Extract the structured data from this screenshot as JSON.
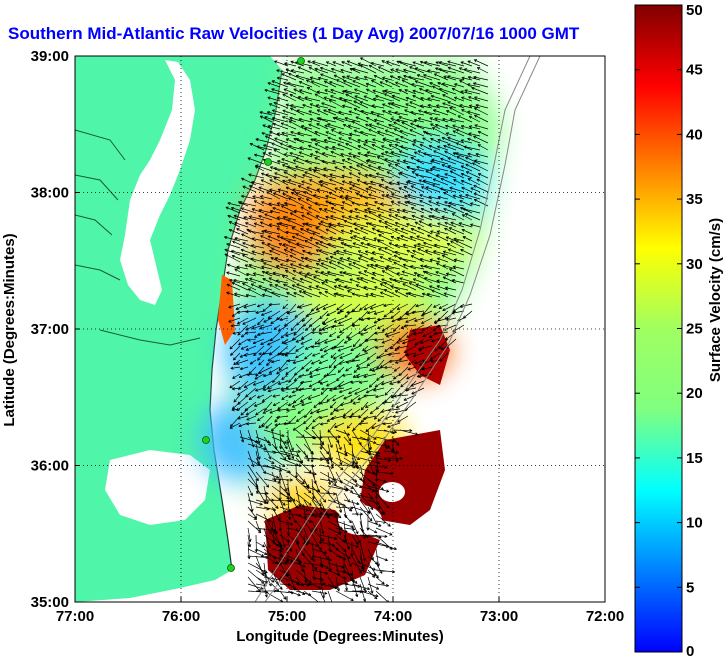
{
  "title": "Southern Mid-Atlantic Raw Velocities (1 Day Avg) 2007/07/16 1000 GMT",
  "map": {
    "xlabel": "Longitude (Degrees:Minutes)",
    "ylabel": "Latitude (Degrees:Minutes)",
    "lon_range": [
      -77,
      -72
    ],
    "lat_range": [
      35,
      39
    ],
    "x_ticks": [
      "77:00",
      "76:00",
      "75:00",
      "74:00",
      "73:00",
      "72:00"
    ],
    "y_ticks": [
      "39:00",
      "38:00",
      "37:00",
      "36:00",
      "35:00"
    ],
    "grid": "dotted",
    "land_color": "#4ff5a8",
    "water_color": "#ffffff"
  },
  "colorbar": {
    "label": "Surface Velocity (cm/s)",
    "ticks": [
      "0",
      "5",
      "10",
      "15",
      "20",
      "25",
      "30",
      "35",
      "40",
      "45",
      "50"
    ],
    "range": [
      0,
      50
    ]
  },
  "chart_data": {
    "type": "heatmap",
    "title": "Southern Mid-Atlantic Raw Velocities (1 Day Avg) 2007/07/16 1000 GMT",
    "xlabel": "Longitude (Degrees:Minutes)",
    "ylabel": "Latitude (Degrees:Minutes)",
    "xlim": [
      -77,
      -72
    ],
    "ylim": [
      35,
      39
    ],
    "colorbar_range": [
      0,
      50
    ],
    "colorbar_label": "Surface Velocity (cm/s)",
    "grid": true,
    "regions": [
      {
        "lon": -74.5,
        "lat": 38.6,
        "speed": 18
      },
      {
        "lon": -74.7,
        "lat": 37.9,
        "speed": 30
      },
      {
        "lon": -75.1,
        "lat": 37.6,
        "speed": 32
      },
      {
        "lon": -74.4,
        "lat": 37.3,
        "speed": 26
      },
      {
        "lon": -75.0,
        "lat": 36.8,
        "speed": 12
      },
      {
        "lon": -74.2,
        "lat": 36.5,
        "speed": 22
      },
      {
        "lon": -73.6,
        "lat": 36.8,
        "speed": 45
      },
      {
        "lon": -75.3,
        "lat": 36.0,
        "speed": 10
      },
      {
        "lon": -74.0,
        "lat": 35.9,
        "speed": 48
      },
      {
        "lon": -74.7,
        "lat": 35.4,
        "speed": 46
      }
    ]
  }
}
